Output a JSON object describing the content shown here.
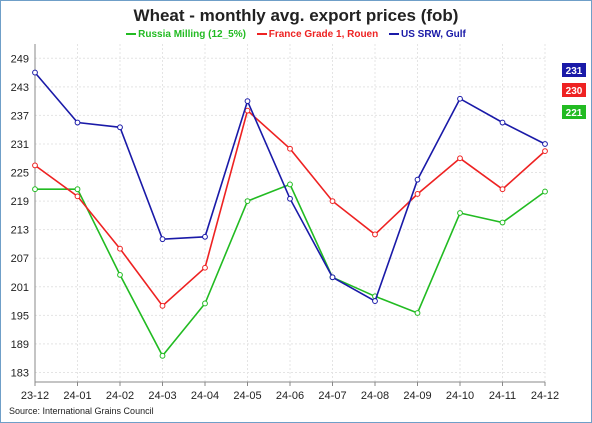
{
  "chart_data": {
    "type": "line",
    "title": "Wheat - monthly avg. export prices (fob)",
    "source": "Source: International Grains Council",
    "categories": [
      "23-12",
      "24-01",
      "24-02",
      "24-03",
      "24-04",
      "24-05",
      "24-06",
      "24-07",
      "24-08",
      "24-09",
      "24-10",
      "24-11",
      "24-12"
    ],
    "y_ticks": [
      183,
      189,
      195,
      201,
      207,
      213,
      219,
      225,
      231,
      237,
      243,
      249
    ],
    "ylim": [
      181,
      252
    ],
    "grid": true,
    "legend_position": "top-center",
    "series": [
      {
        "name": "Russia Milling (12_5%)",
        "color": "#22bb22",
        "values": [
          221.5,
          221.5,
          203.5,
          186.5,
          197.5,
          219,
          222.5,
          203,
          199,
          195.5,
          216.5,
          214.5,
          221
        ],
        "last_label": "221"
      },
      {
        "name": "France Grade 1, Rouen",
        "color": "#ee2222",
        "values": [
          226.5,
          220,
          209,
          197,
          205,
          238,
          230,
          219,
          212,
          220.5,
          228,
          221.5,
          229.5
        ],
        "last_label": "230"
      },
      {
        "name": "US SRW, Gulf",
        "color": "#1a1aa8",
        "values": [
          246,
          235.5,
          234.5,
          211,
          211.5,
          240,
          219.5,
          203,
          198,
          223.5,
          240.5,
          235.5,
          231
        ],
        "last_label": "231"
      }
    ]
  }
}
